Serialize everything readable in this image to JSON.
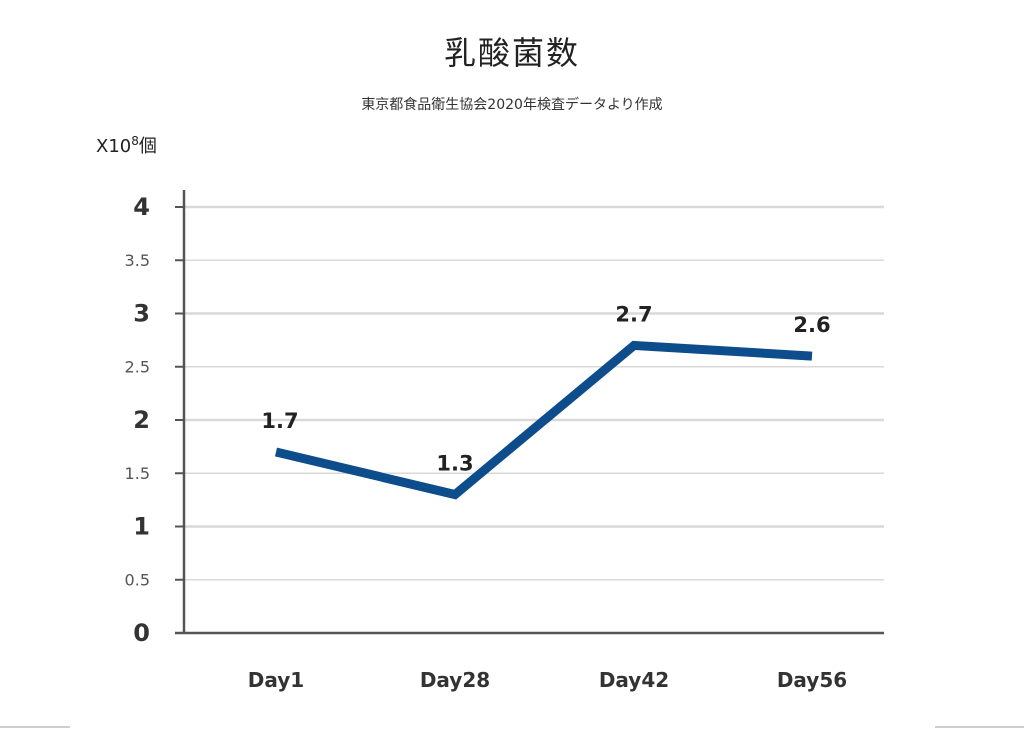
{
  "chart_data": {
    "type": "line",
    "title": "乳酸菌数",
    "subtitle": "東京都食品衛生協会2020年検査データより作成",
    "unit": {
      "base": "X10",
      "exp": "8",
      "suffix": "個"
    },
    "categories": [
      "Day1",
      "Day28",
      "Day42",
      "Day56"
    ],
    "series": [
      {
        "values": [
          1.7,
          1.3,
          2.7,
          2.6
        ],
        "color": "#0d4d8c"
      }
    ],
    "data_labels": [
      "1.7",
      "1.3",
      "2.7",
      "2.6"
    ],
    "yticks": [
      {
        "value": 0,
        "label": "0",
        "major": true
      },
      {
        "value": 0.5,
        "label": "0.5",
        "major": false
      },
      {
        "value": 1,
        "label": "1",
        "major": true
      },
      {
        "value": 1.5,
        "label": "1.5",
        "major": false
      },
      {
        "value": 2,
        "label": "2",
        "major": true
      },
      {
        "value": 2.5,
        "label": "2.5",
        "major": false
      },
      {
        "value": 3,
        "label": "3",
        "major": true
      },
      {
        "value": 3.5,
        "label": "3.5",
        "major": false
      },
      {
        "value": 4,
        "label": "4",
        "major": true
      }
    ],
    "ylim": [
      0,
      4
    ],
    "grid": true,
    "legend": "none"
  }
}
